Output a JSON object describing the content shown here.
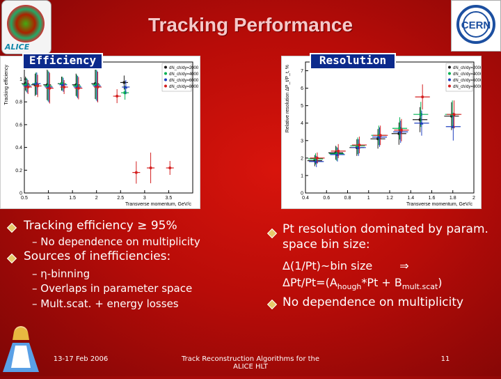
{
  "slide": {
    "title": "Tracking Performance",
    "logo_left_text": "ALICE",
    "efficiency_tag": "Efficiency",
    "resolution_tag": "Resolution"
  },
  "left_bullets": {
    "b1": "Tracking efficiency ≥ 95%",
    "b1_sub": "No dependence on multiplicity",
    "b2": "Sources of inefficiencies:",
    "sub1": "η-binning",
    "sub2": "Overlaps in parameter space",
    "sub3": "Mult.scat. + energy losses"
  },
  "right_bullets": {
    "b1": "Pt resolution dominated by param. space bin size:",
    "formula1": "Δ(1/Pt)~bin size",
    "arrow": "⇒",
    "formula2_pre": "ΔPt/Pt=(A",
    "formula2_sub1": "hough",
    "formula2_mid": "*Pt + B",
    "formula2_sub2": "mult.scat",
    "formula2_post": ")",
    "b2": "No dependence on multiplicity"
  },
  "footer": {
    "date": "13-17 Feb 2006",
    "center": "Track Reconstruction Algorithms for the ALICE HLT",
    "page": "11"
  },
  "legend": [
    "dN_ch/dy=2000",
    "dN_ch/dy=4000",
    "dN_ch/dy=6000",
    "dN_ch/dy=8000"
  ],
  "colors": {
    "s1": "#1a1a1a",
    "s2": "#00b050",
    "s3": "#1f3fbf",
    "s4": "#d42020"
  },
  "chart_data": [
    {
      "type": "scatter",
      "xlabel": "Transverse momentum, GeV/c",
      "ylabel": "Tracking efficiency",
      "xlim": [
        0.5,
        4.0
      ],
      "ylim": [
        0,
        1.15
      ],
      "xticks": [
        "0.5",
        "1",
        "1.5",
        "2",
        "2.5",
        "3",
        "3.5"
      ],
      "yticks": [
        "0",
        "0.2",
        "0.4",
        "0.6",
        "0.8",
        "1"
      ],
      "series": [
        {
          "name": "dN_ch/dy=2000",
          "values": [
            [
              0.55,
              0.96
            ],
            [
              0.75,
              0.95
            ],
            [
              1.0,
              0.95
            ],
            [
              1.3,
              0.96
            ],
            [
              1.6,
              0.95
            ],
            [
              2.0,
              0.96
            ],
            [
              2.6,
              0.97
            ]
          ]
        },
        {
          "name": "dN_ch/dy=4000",
          "values": [
            [
              0.55,
              0.95
            ],
            [
              0.75,
              0.96
            ],
            [
              1.0,
              0.94
            ],
            [
              1.3,
              0.96
            ],
            [
              1.6,
              0.94
            ],
            [
              2.0,
              0.95
            ],
            [
              2.6,
              0.88
            ]
          ]
        },
        {
          "name": "dN_ch/dy=6000",
          "values": [
            [
              0.55,
              0.94
            ],
            [
              0.75,
              0.96
            ],
            [
              1.0,
              0.93
            ],
            [
              1.3,
              0.95
            ],
            [
              1.6,
              0.93
            ],
            [
              2.0,
              0.94
            ],
            [
              2.6,
              0.93
            ]
          ]
        },
        {
          "name": "dN_ch/dy=8000",
          "values": [
            [
              0.55,
              0.93
            ],
            [
              0.75,
              0.94
            ],
            [
              1.0,
              0.92
            ],
            [
              1.3,
              0.93
            ],
            [
              1.6,
              0.92
            ],
            [
              2.0,
              0.93
            ],
            [
              2.4,
              0.85
            ],
            [
              2.8,
              0.18
            ],
            [
              3.1,
              0.22
            ],
            [
              3.5,
              0.22
            ]
          ]
        }
      ]
    },
    {
      "type": "scatter",
      "xlabel": "Transverse momentum, GeV/c",
      "ylabel": "Relative resolution ΔP_t/P_t, %",
      "xlim": [
        0.4,
        2.0
      ],
      "ylim": [
        0,
        7.5
      ],
      "xticks": [
        "0.4",
        "0.6",
        "0.8",
        "1",
        "1.2",
        "1.4",
        "1.6",
        "1.8",
        "2"
      ],
      "yticks": [
        "0",
        "1",
        "2",
        "3",
        "4",
        "5",
        "6",
        "7"
      ],
      "series": [
        {
          "name": "dN_ch/dy=2000",
          "values": [
            [
              0.5,
              1.85
            ],
            [
              0.7,
              2.3
            ],
            [
              0.9,
              2.6
            ],
            [
              1.1,
              3.1
            ],
            [
              1.3,
              3.4
            ],
            [
              1.5,
              4.2
            ],
            [
              1.8,
              4.4
            ]
          ]
        },
        {
          "name": "dN_ch/dy=4000",
          "values": [
            [
              0.5,
              1.95
            ],
            [
              0.7,
              2.25
            ],
            [
              0.9,
              2.7
            ],
            [
              1.1,
              3.3
            ],
            [
              1.3,
              3.7
            ],
            [
              1.5,
              4.5
            ],
            [
              1.8,
              4.5
            ]
          ]
        },
        {
          "name": "dN_ch/dy=6000",
          "values": [
            [
              0.5,
              1.8
            ],
            [
              0.7,
              2.2
            ],
            [
              0.9,
              2.6
            ],
            [
              1.1,
              3.2
            ],
            [
              1.3,
              3.5
            ],
            [
              1.5,
              4.0
            ],
            [
              1.8,
              3.8
            ]
          ]
        },
        {
          "name": "dN_ch/dy=8000",
          "values": [
            [
              0.5,
              2.0
            ],
            [
              0.7,
              2.4
            ],
            [
              0.9,
              2.75
            ],
            [
              1.1,
              3.3
            ],
            [
              1.3,
              3.6
            ],
            [
              1.5,
              5.5
            ],
            [
              1.8,
              4.5
            ]
          ]
        }
      ]
    }
  ]
}
